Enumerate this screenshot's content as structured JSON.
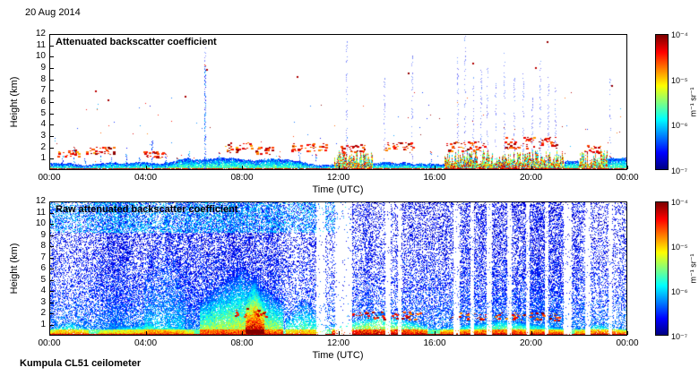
{
  "header": {
    "date": "20 Aug 2014"
  },
  "footer": {
    "instrument": "Kumpula CL51 ceilometer"
  },
  "chart_data": [
    {
      "type": "heatmap",
      "title": "Attenuated backscatter coefficient",
      "xlabel": "Time (UTC)",
      "ylabel": "Height (km)",
      "x_ticks": [
        "00:00",
        "04:00",
        "08:00",
        "12:00",
        "16:00",
        "20:00",
        "00:00"
      ],
      "x_range_hours": [
        0,
        24
      ],
      "y_ticks": [
        "1",
        "2",
        "3",
        "4",
        "5",
        "6",
        "7",
        "8",
        "9",
        "10",
        "11",
        "12"
      ],
      "ylim_km": [
        0,
        12
      ],
      "grid": false,
      "colorbar": {
        "label": "m⁻¹ sr⁻¹",
        "ticks": [
          "10⁻⁴",
          "10⁻⁵",
          "10⁻⁶",
          "10⁻⁷"
        ],
        "scale": "log",
        "colormap": "jet",
        "range": [
          "1e-4",
          "1e-7"
        ]
      },
      "style": "clean",
      "features": {
        "aerosol_layer_top_km": 1.0,
        "surface_plumes": [
          [
            11.8,
            13.4
          ],
          [
            16.4,
            21.4
          ],
          [
            22.0,
            23.2
          ]
        ],
        "spikes": [
          [
            0.5,
            1.2
          ],
          [
            1.0,
            2.0
          ],
          [
            1.45,
            1.0
          ],
          [
            2.1,
            1.6
          ],
          [
            2.55,
            1.1
          ],
          [
            3.15,
            1.9
          ],
          [
            3.7,
            1.2
          ],
          [
            4.25,
            2.5
          ],
          [
            4.8,
            1.4
          ],
          [
            5.3,
            1.0
          ],
          [
            5.75,
            1.6
          ],
          [
            6.45,
            9.3
          ],
          [
            7.05,
            1.5
          ],
          [
            9.55,
            1.2
          ],
          [
            10.35,
            1.9
          ],
          [
            11.05,
            1.3
          ],
          [
            15.85,
            1.6
          ],
          [
            23.3,
            1.2
          ]
        ],
        "cloud_bands": [
          {
            "t": [
              0.3,
              1.2
            ],
            "h": [
              1.1,
              1.7
            ]
          },
          {
            "t": [
              1.5,
              2.7
            ],
            "h": [
              1.3,
              2.0
            ]
          },
          {
            "t": [
              3.9,
              4.7
            ],
            "h": [
              1.0,
              1.6
            ]
          },
          {
            "t": [
              7.3,
              8.4
            ],
            "h": [
              1.5,
              2.4
            ]
          },
          {
            "t": [
              8.5,
              9.3
            ],
            "h": [
              1.3,
              2.0
            ]
          },
          {
            "t": [
              9.9,
              11.5
            ],
            "h": [
              1.6,
              2.3
            ]
          },
          {
            "t": [
              12.1,
              13.1
            ],
            "h": [
              1.5,
              2.2
            ]
          },
          {
            "t": [
              13.9,
              15.2
            ],
            "h": [
              1.7,
              2.4
            ]
          },
          {
            "t": [
              16.5,
              18.1
            ],
            "h": [
              1.6,
              2.6
            ]
          },
          {
            "t": [
              18.9,
              21.1
            ],
            "h": [
              1.8,
              2.9
            ]
          },
          {
            "t": [
              22.2,
              22.9
            ],
            "h": [
              1.5,
              2.1
            ]
          }
        ],
        "high_dots": [
          [
            1.9,
            7.0
          ],
          [
            2.4,
            6.2
          ],
          [
            5.6,
            6.5
          ],
          [
            6.5,
            8.9
          ],
          [
            10.3,
            8.3
          ],
          [
            14.9,
            8.6
          ],
          [
            17.6,
            9.5
          ],
          [
            20.2,
            9.1
          ],
          [
            20.7,
            11.4
          ],
          [
            23.4,
            7.5
          ]
        ],
        "precip_streaks": [
          6.45,
          12.35,
          13.9,
          15.05,
          16.95,
          17.25,
          17.6,
          17.95,
          18.2,
          18.55,
          18.9,
          19.3,
          19.7,
          20.05,
          20.4,
          20.75,
          21.05,
          23.3
        ],
        "scatter_dots": 90
      }
    },
    {
      "type": "heatmap",
      "title": "Raw attenuated backscatter coefficient",
      "xlabel": "Time (UTC)",
      "ylabel": "Height (km)",
      "x_ticks": [
        "00:00",
        "04:00",
        "08:00",
        "12:00",
        "16:00",
        "20:00",
        "00:00"
      ],
      "x_range_hours": [
        0,
        24
      ],
      "y_ticks": [
        "1",
        "2",
        "3",
        "4",
        "5",
        "6",
        "7",
        "8",
        "9",
        "10",
        "11",
        "12"
      ],
      "ylim_km": [
        0,
        12
      ],
      "grid": false,
      "colorbar": {
        "label": "m⁻¹ sr⁻¹",
        "ticks": [
          "10⁻⁴",
          "10⁻⁵",
          "10⁻⁶",
          "10⁻⁷"
        ],
        "scale": "log",
        "colormap": "jet",
        "range": [
          "1e-4",
          "1e-7"
        ]
      },
      "style": "noisy",
      "features": {
        "white_gaps": [
          [
            11.05,
            11.45
          ],
          [
            11.85,
            12.55
          ],
          [
            13.95,
            14.15
          ],
          [
            14.45,
            14.62
          ],
          [
            16.78,
            17.05
          ],
          [
            17.5,
            17.65
          ],
          [
            18.15,
            18.38
          ],
          [
            19.0,
            19.2
          ],
          [
            19.8,
            19.95
          ],
          [
            20.6,
            20.75
          ],
          [
            21.35,
            21.7
          ],
          [
            22.25,
            22.5
          ],
          [
            23.25,
            23.4
          ]
        ],
        "plumes": [
          {
            "t": [
              0.0,
              1.6
            ],
            "top": 1.3,
            "s": 0.4
          },
          {
            "t": [
              2.0,
              6.0
            ],
            "top": 1.1,
            "s": 0.35
          },
          {
            "t": [
              6.2,
              9.7
            ],
            "top": 6.5,
            "s": 0.45
          },
          {
            "t": [
              8.1,
              8.9
            ],
            "top": 5.6,
            "s": 0.5
          },
          {
            "t": [
              9.8,
              11.3
            ],
            "top": 3.5,
            "s": 0.3
          },
          {
            "t": [
              11.7,
              15.7
            ],
            "top": 2.1,
            "s": 0.6
          },
          {
            "t": [
              16.2,
              21.5
            ],
            "top": 1.4,
            "s": 0.55
          },
          {
            "t": [
              21.8,
              24.0
            ],
            "top": 1.1,
            "s": 0.5
          },
          {
            "t": [
              3.9,
              5.6
            ],
            "top": 11.5,
            "s": 0.1
          }
        ],
        "cloud_bands": [
          {
            "t": [
              12.2,
              15.4
            ],
            "h": [
              1.4,
              2.1
            ]
          },
          {
            "t": [
              16.6,
              21.2
            ],
            "h": [
              1.3,
              2.0
            ]
          },
          {
            "t": [
              7.6,
              9.0
            ],
            "h": [
              1.6,
              2.4
            ]
          }
        ],
        "high_noise_band": {
          "t": [
            0,
            12.5
          ],
          "above_km": 9.3
        }
      }
    }
  ]
}
